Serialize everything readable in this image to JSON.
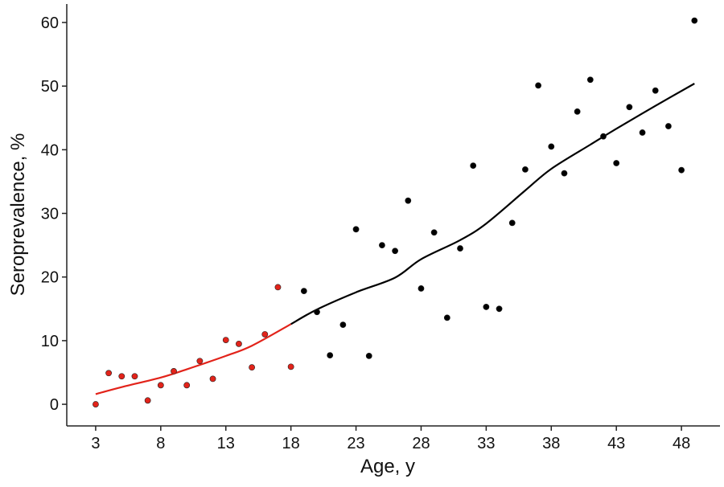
{
  "chart_data": {
    "type": "scatter",
    "xlabel": "Age, y",
    "ylabel": "Seroprevalence, %",
    "xlim": [
      0.78,
      50.96
    ],
    "ylim": [
      -3.4,
      62.9
    ],
    "xticks": [
      3,
      8,
      13,
      18,
      23,
      28,
      33,
      38,
      43,
      48
    ],
    "yticks": [
      0,
      10,
      20,
      30,
      40,
      50,
      60
    ],
    "grid": false,
    "series": [
      {
        "mode": "points",
        "color": "#e2231a",
        "x": [
          3,
          4,
          5,
          6,
          7,
          8,
          9,
          10,
          11,
          12,
          13,
          14,
          15,
          16,
          17,
          18
        ],
        "values": [
          0,
          4.9,
          4.4,
          4.4,
          0.6,
          3.0,
          5.2,
          3.0,
          6.8,
          4.0,
          10.1,
          9.5,
          5.8,
          11.0,
          18.4,
          5.9
        ]
      },
      {
        "mode": "points",
        "color": "#000000",
        "x": [
          19,
          20,
          21,
          22,
          23,
          24,
          25,
          26,
          27,
          28,
          29,
          30,
          31,
          32,
          33,
          34,
          35,
          36,
          37,
          38,
          39,
          40,
          41,
          42,
          43,
          44,
          45,
          46,
          47,
          48,
          49
        ],
        "values": [
          17.8,
          14.5,
          7.7,
          12.5,
          27.5,
          7.6,
          25.0,
          24.1,
          32.0,
          18.2,
          27.0,
          13.6,
          24.5,
          37.5,
          15.3,
          15.0,
          28.5,
          36.9,
          50.1,
          40.5,
          36.3,
          46.0,
          51.0,
          42.1,
          37.9,
          46.7,
          42.7,
          49.3,
          43.7,
          36.8,
          60.3
        ]
      },
      {
        "mode": "line",
        "color": "#e2231a",
        "x": [
          3,
          5,
          8,
          10,
          13,
          15,
          18
        ],
        "values": [
          1.6,
          2.7,
          4.2,
          5.5,
          7.6,
          9.2,
          12.6
        ]
      },
      {
        "mode": "line",
        "color": "#000000",
        "x": [
          18,
          20,
          23,
          26,
          28,
          31,
          33,
          36,
          38,
          41,
          43,
          46,
          49
        ],
        "values": [
          12.6,
          14.9,
          17.6,
          19.9,
          22.8,
          25.8,
          28.4,
          33.6,
          37.0,
          40.8,
          43.3,
          46.9,
          50.4
        ]
      }
    ]
  }
}
